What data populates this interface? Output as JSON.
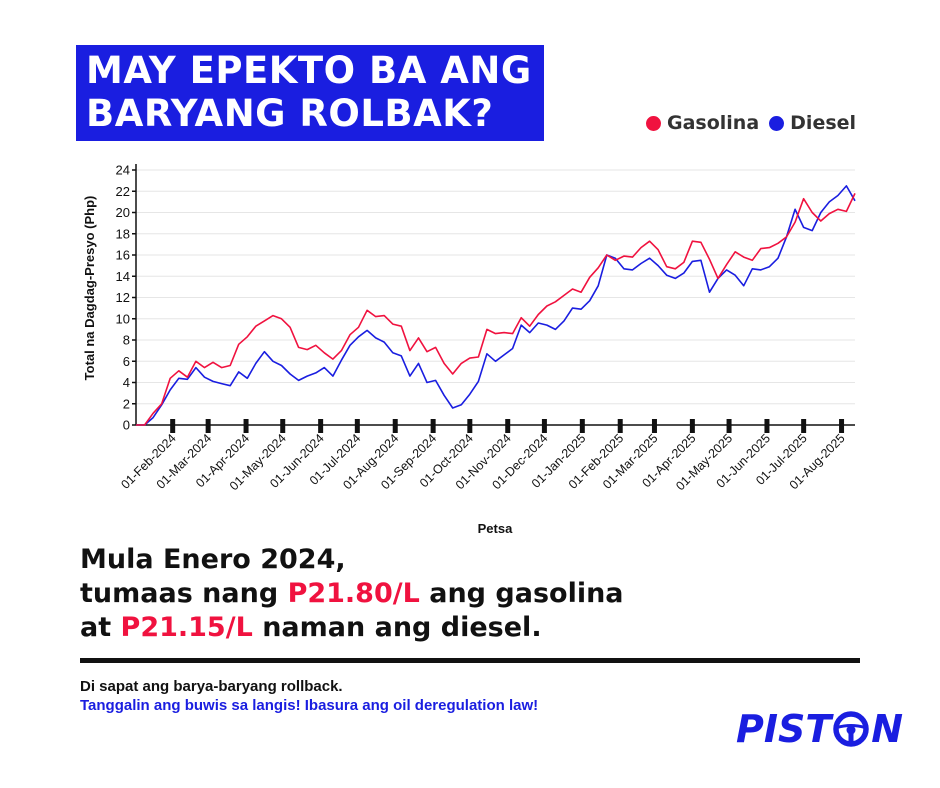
{
  "title": {
    "line1": "MAY EPEKTO BA ANG",
    "line2": "BARYANG ROLBAK?"
  },
  "colors": {
    "gasolina": "#f0123f",
    "diesel": "#1a1ee0",
    "brand": "#1a1ee0"
  },
  "legend": {
    "gasolina": "Gasolina",
    "diesel": "Diesel",
    "placement": "top-right"
  },
  "chart_data": {
    "type": "line",
    "xlabel": "Petsa",
    "ylabel": "Total na Dagdag-Presyo (Php)",
    "ylim": [
      0,
      24
    ],
    "yticks": [
      0,
      2,
      4,
      6,
      8,
      10,
      12,
      14,
      16,
      18,
      20,
      22,
      24
    ],
    "grid": true,
    "xticks": [
      "01-Feb-2024",
      "01-Mar-2024",
      "01-Apr-2024",
      "01-May-2024",
      "01-Jun-2024",
      "01-Jul-2024",
      "01-Aug-2024",
      "01-Sep-2024",
      "01-Oct-2024",
      "01-Nov-2024",
      "01-Dec-2024",
      "01-Jan-2025",
      "01-Feb-2025",
      "01-Mar-2025",
      "01-Apr-2025",
      "01-May-2025",
      "01-Jun-2025",
      "01-Jul-2025",
      "01-Aug-2025"
    ],
    "x": [
      "2024-01-02",
      "2024-01-09",
      "2024-01-16",
      "2024-01-23",
      "2024-01-30",
      "2024-02-06",
      "2024-02-13",
      "2024-02-20",
      "2024-02-27",
      "2024-03-05",
      "2024-03-12",
      "2024-03-19",
      "2024-03-26",
      "2024-04-02",
      "2024-04-09",
      "2024-04-16",
      "2024-04-23",
      "2024-04-30",
      "2024-05-07",
      "2024-05-14",
      "2024-05-21",
      "2024-05-28",
      "2024-06-04",
      "2024-06-11",
      "2024-06-18",
      "2024-06-25",
      "2024-07-02",
      "2024-07-09",
      "2024-07-16",
      "2024-07-23",
      "2024-07-30",
      "2024-08-06",
      "2024-08-13",
      "2024-08-20",
      "2024-08-27",
      "2024-09-03",
      "2024-09-10",
      "2024-09-17",
      "2024-09-24",
      "2024-10-01",
      "2024-10-08",
      "2024-10-15",
      "2024-10-22",
      "2024-10-29",
      "2024-11-05",
      "2024-11-12",
      "2024-11-19",
      "2024-11-26",
      "2024-12-03",
      "2024-12-10",
      "2024-12-17",
      "2024-12-24",
      "2024-12-31",
      "2025-01-07",
      "2025-01-14",
      "2025-01-21",
      "2025-01-28",
      "2025-02-04",
      "2025-02-11",
      "2025-02-18",
      "2025-02-25",
      "2025-03-04",
      "2025-03-11",
      "2025-03-18",
      "2025-03-25",
      "2025-04-01",
      "2025-04-08",
      "2025-04-15",
      "2025-04-22",
      "2025-04-29",
      "2025-05-06",
      "2025-05-13",
      "2025-05-20",
      "2025-05-27",
      "2025-06-03",
      "2025-06-10",
      "2025-06-17",
      "2025-06-24",
      "2025-07-01",
      "2025-07-08",
      "2025-07-15",
      "2025-07-22",
      "2025-07-29",
      "2025-08-05",
      "2025-08-12"
    ],
    "series": [
      {
        "name": "Gasolina",
        "color": "#f0123f",
        "values": [
          0.0,
          0.0,
          1.1,
          2.0,
          4.4,
          5.1,
          4.5,
          6.0,
          5.4,
          5.9,
          5.4,
          5.6,
          7.6,
          8.3,
          9.3,
          9.8,
          10.3,
          10.0,
          9.2,
          7.3,
          7.1,
          7.5,
          6.8,
          6.2,
          7.0,
          8.5,
          9.2,
          10.8,
          10.2,
          10.3,
          9.5,
          9.3,
          7.0,
          8.2,
          6.9,
          7.3,
          5.8,
          4.8,
          5.8,
          6.3,
          6.4,
          9.0,
          8.6,
          8.7,
          8.6,
          10.1,
          9.3,
          10.4,
          11.2,
          11.6,
          12.2,
          12.8,
          12.5,
          13.9,
          14.8,
          16.0,
          15.5,
          15.9,
          15.8,
          16.7,
          17.3,
          16.5,
          14.9,
          14.7,
          15.3,
          17.3,
          17.2,
          15.6,
          13.8,
          15.1,
          16.3,
          15.8,
          15.5,
          16.6,
          16.7,
          17.1,
          17.7,
          19.1,
          21.3,
          20.0,
          19.2,
          19.9,
          20.3,
          20.1,
          21.8
        ]
      },
      {
        "name": "Diesel",
        "color": "#1a1ee0",
        "values": [
          0.0,
          0.0,
          0.7,
          1.9,
          3.3,
          4.4,
          4.3,
          5.4,
          4.5,
          4.1,
          3.9,
          3.7,
          5.0,
          4.4,
          5.8,
          6.9,
          6.0,
          5.6,
          4.8,
          4.2,
          4.6,
          4.9,
          5.4,
          4.6,
          6.1,
          7.5,
          8.3,
          8.9,
          8.2,
          7.8,
          6.8,
          6.5,
          4.6,
          5.8,
          4.0,
          4.2,
          2.8,
          1.6,
          1.9,
          2.9,
          4.1,
          6.7,
          6.0,
          6.6,
          7.2,
          9.4,
          8.7,
          9.6,
          9.4,
          9.0,
          9.8,
          11.0,
          10.9,
          11.7,
          13.1,
          16.0,
          15.7,
          14.7,
          14.6,
          15.2,
          15.7,
          15.0,
          14.1,
          13.8,
          14.3,
          15.4,
          15.5,
          12.5,
          13.8,
          14.6,
          14.1,
          13.1,
          14.7,
          14.6,
          14.9,
          15.7,
          17.7,
          20.3,
          18.6,
          18.3,
          20.0,
          21.0,
          21.6,
          22.5,
          21.1
        ]
      }
    ]
  },
  "headline": {
    "line1": "Mula Enero 2024,",
    "line2_pre": "tumaas nang ",
    "line2_hl": "P21.80/L",
    "line2_post": " ang gasolina",
    "line3_pre": "at ",
    "line3_hl": "P21.15/L",
    "line3_post": " naman ang diesel."
  },
  "footer": {
    "note1": "Di sapat ang barya-baryang rollback.",
    "note2": "Tanggalin ang buwis sa langis! Ibasura ang oil deregulation law!"
  },
  "logo": {
    "text": "PISTON",
    "part1": "PIST",
    "part2": "N",
    "icon": "steering-wheel-icon"
  }
}
